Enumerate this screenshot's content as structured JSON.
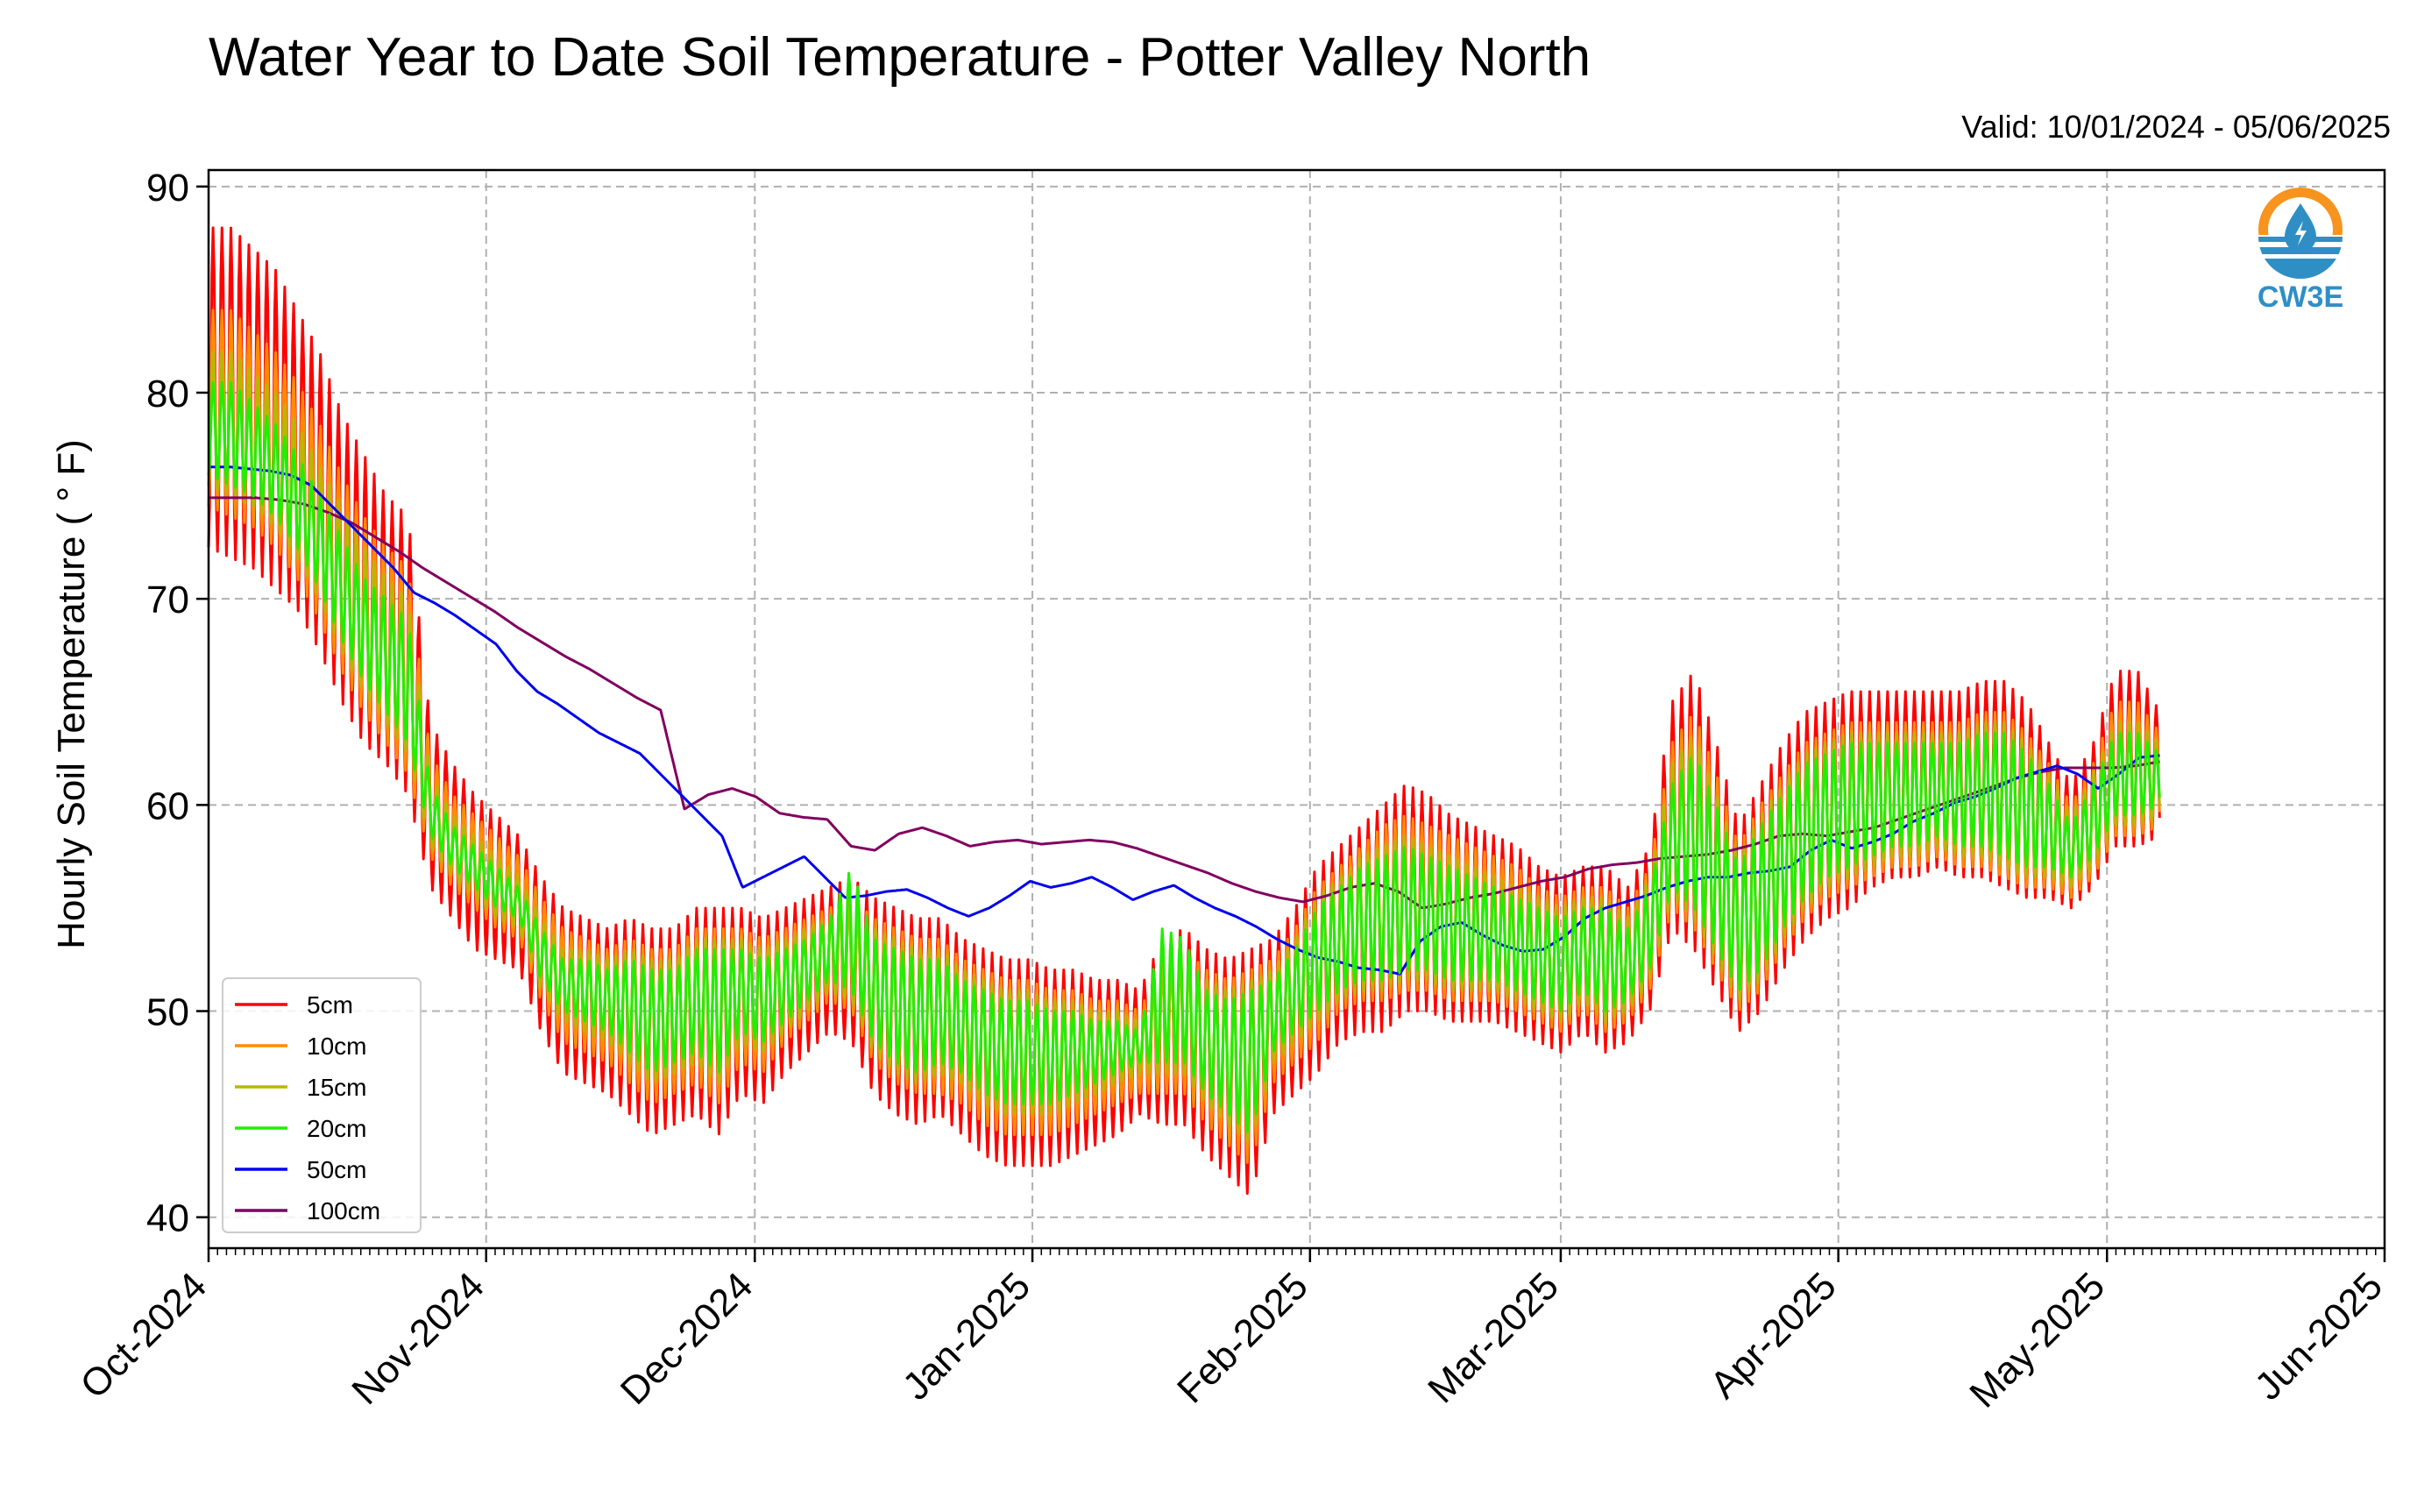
{
  "title": "Water Year to Date Soil Temperature - Potter Valley North",
  "valid_text": "Valid: 10/01/2024 - 05/06/2025",
  "logo": {
    "text": "CW3E",
    "icon": "cw3e-logo-icon",
    "colors": {
      "orange": "#f7941d",
      "blue": "#2f8fc5"
    }
  },
  "chart_data": {
    "type": "line",
    "title": "Water Year to Date Soil Temperature - Potter Valley North",
    "xlabel": "",
    "ylabel": "Hourly Soil Temperature ( ° F)",
    "xlim": [
      "2024-10-01",
      "2025-06-01"
    ],
    "ylim": [
      38.5,
      90.8
    ],
    "y_ticks": [
      40,
      50,
      60,
      70,
      80,
      90
    ],
    "x_ticks": [
      "2024-10-01",
      "2024-11-01",
      "2024-12-01",
      "2025-01-01",
      "2025-02-01",
      "2025-03-01",
      "2025-04-01",
      "2025-05-01",
      "2025-06-01"
    ],
    "x_tick_labels": [
      "Oct-2024",
      "Nov-2024",
      "Dec-2024",
      "Jan-2025",
      "Feb-2025",
      "Mar-2025",
      "Apr-2025",
      "May-2025",
      "Jun-2025"
    ],
    "grid": true,
    "legend_position": "bottom-left",
    "daily_cycle": true,
    "series": [
      {
        "name": "5cm",
        "color": "#ff0000",
        "min_values": [
          72.5,
          72.0,
          71.5,
          70.5,
          69.5,
          67.5,
          65.0,
          63.0,
          62.0,
          60.5,
          56.0,
          54.5,
          53.0,
          52.5,
          52.0,
          49.0,
          47.0,
          46.5,
          46.0,
          45.0,
          44.0,
          44.5,
          45.0,
          44.0,
          46.0,
          45.5,
          47.0,
          48.0,
          49.0,
          48.5,
          46.0,
          45.0,
          44.5,
          45.0,
          44.0,
          43.0,
          42.5,
          42.5,
          42.5,
          43.0,
          43.5,
          44.0,
          45.0,
          44.5,
          44.5,
          43.0,
          42.0,
          41.0,
          45.0,
          46.0,
          47.0,
          48.5,
          49.0,
          49.0,
          50.0,
          50.0,
          49.5,
          49.5,
          49.5,
          49.0,
          48.5,
          48.0,
          49.0,
          48.0,
          48.5,
          50.0,
          54.0,
          53.0,
          51.0,
          49.0,
          50.0,
          52.0,
          53.5,
          54.5,
          55.0,
          56.0,
          56.5,
          56.5,
          57.0,
          56.5,
          56.5,
          56.0,
          55.5,
          55.5,
          55.0,
          56.0,
          58.0,
          58.0,
          58.5
        ],
        "max_values": [
          88.0,
          88.0,
          87.0,
          86.0,
          84.0,
          82.0,
          79.0,
          77.0,
          75.0,
          74.0,
          64.0,
          62.0,
          60.5,
          59.5,
          58.5,
          56.5,
          55.0,
          54.5,
          54.0,
          54.5,
          54.0,
          54.0,
          55.0,
          55.0,
          55.0,
          54.5,
          55.0,
          55.5,
          56.0,
          56.5,
          55.5,
          55.0,
          54.5,
          54.5,
          53.5,
          53.0,
          52.5,
          52.5,
          52.0,
          52.0,
          51.5,
          51.5,
          51.0,
          53.5,
          54.0,
          53.0,
          52.5,
          53.0,
          53.5,
          55.0,
          57.0,
          58.0,
          59.0,
          60.0,
          61.0,
          60.5,
          59.5,
          59.0,
          58.5,
          58.0,
          57.0,
          56.5,
          57.0,
          57.0,
          56.0,
          58.0,
          65.0,
          66.5,
          63.0,
          59.0,
          61.0,
          63.0,
          64.5,
          65.0,
          65.5,
          65.5,
          65.5,
          65.5,
          65.5,
          65.5,
          66.0,
          66.0,
          65.0,
          63.0,
          61.0,
          63.0,
          66.5,
          66.5,
          64.5
        ]
      },
      {
        "name": "10cm",
        "color": "#ff8c00",
        "min_values": [
          74.5,
          74.0,
          73.5,
          72.5,
          71.0,
          69.0,
          66.5,
          64.5,
          63.0,
          61.5,
          57.5,
          56.0,
          55.0,
          54.0,
          53.5,
          50.5,
          48.5,
          48.0,
          47.5,
          46.5,
          45.5,
          46.0,
          46.5,
          45.5,
          47.5,
          47.0,
          48.5,
          49.5,
          50.5,
          50.0,
          47.5,
          46.5,
          46.0,
          46.0,
          45.5,
          44.5,
          44.0,
          44.0,
          44.0,
          44.5,
          45.0,
          45.5,
          46.0,
          46.0,
          46.0,
          44.5,
          43.5,
          42.5,
          46.5,
          47.5,
          48.5,
          50.0,
          50.5,
          50.5,
          51.0,
          51.0,
          50.5,
          50.5,
          50.5,
          50.0,
          49.5,
          49.0,
          50.0,
          49.0,
          49.5,
          51.0,
          55.0,
          54.0,
          52.0,
          50.0,
          51.0,
          53.0,
          54.5,
          55.5,
          56.0,
          56.5,
          57.0,
          57.0,
          57.5,
          57.0,
          57.0,
          56.5,
          56.0,
          56.0,
          55.5,
          56.5,
          58.5,
          58.5,
          59.0
        ],
        "max_values": [
          84.0,
          84.0,
          83.0,
          82.0,
          80.5,
          78.5,
          76.0,
          74.0,
          72.5,
          71.5,
          62.5,
          60.5,
          59.5,
          58.5,
          57.5,
          55.5,
          54.0,
          53.5,
          53.0,
          53.5,
          53.0,
          53.0,
          54.0,
          54.0,
          54.0,
          53.5,
          54.0,
          54.5,
          55.0,
          55.5,
          54.5,
          54.0,
          53.5,
          53.5,
          52.5,
          52.0,
          51.5,
          51.5,
          51.0,
          51.0,
          50.5,
          50.5,
          50.0,
          52.5,
          53.0,
          52.0,
          51.5,
          52.0,
          52.5,
          54.0,
          56.0,
          57.0,
          58.0,
          59.0,
          59.5,
          59.0,
          58.5,
          58.0,
          57.5,
          57.0,
          56.0,
          55.5,
          56.0,
          56.0,
          55.0,
          57.0,
          63.0,
          64.5,
          61.5,
          58.0,
          60.0,
          61.5,
          63.0,
          63.5,
          64.0,
          64.0,
          64.0,
          64.0,
          64.0,
          64.0,
          64.5,
          64.5,
          63.5,
          62.0,
          60.0,
          62.0,
          65.0,
          65.0,
          63.5
        ]
      },
      {
        "name": "15cm",
        "color": "#b8b800",
        "min_values": [
          75.5,
          75.0,
          74.5,
          73.5,
          72.0,
          70.0,
          67.5,
          65.5,
          64.0,
          62.5,
          58.0,
          56.5,
          55.5,
          54.5,
          54.0,
          51.0,
          49.5,
          49.0,
          48.5,
          47.5,
          46.5,
          47.0,
          47.5,
          46.5,
          48.5,
          48.0,
          49.0,
          50.0,
          51.0,
          50.5,
          48.0,
          47.0,
          46.5,
          47.0,
          46.5,
          45.5,
          45.0,
          45.0,
          45.0,
          45.5,
          46.0,
          46.5,
          47.0,
          47.0,
          47.0,
          45.5,
          44.5,
          43.5,
          47.5,
          48.5,
          49.5,
          50.5,
          51.0,
          51.0,
          51.5,
          51.5,
          51.0,
          51.0,
          51.0,
          50.5,
          50.0,
          49.5,
          50.5,
          49.5,
          50.0,
          51.5,
          55.5,
          54.5,
          52.5,
          50.5,
          51.5,
          53.5,
          55.0,
          56.0,
          56.5,
          57.0,
          57.5,
          57.5,
          58.0,
          57.5,
          57.5,
          57.0,
          56.5,
          56.5,
          56.0,
          57.0,
          59.0,
          59.0,
          59.5
        ],
        "max_values": [
          82.0,
          82.0,
          81.0,
          80.0,
          78.5,
          76.5,
          74.5,
          72.5,
          71.0,
          70.0,
          61.5,
          59.5,
          58.5,
          57.5,
          56.5,
          54.5,
          53.0,
          53.0,
          52.5,
          53.0,
          52.5,
          52.5,
          53.5,
          53.5,
          53.5,
          53.0,
          53.5,
          54.0,
          54.5,
          55.0,
          54.0,
          53.5,
          53.0,
          53.0,
          52.0,
          51.5,
          51.0,
          51.0,
          50.5,
          50.5,
          50.0,
          50.0,
          49.5,
          52.0,
          52.5,
          51.5,
          51.0,
          51.5,
          52.0,
          53.5,
          55.5,
          56.5,
          57.5,
          58.0,
          58.5,
          58.0,
          57.5,
          57.0,
          56.5,
          56.0,
          55.5,
          55.0,
          55.5,
          55.5,
          54.5,
          56.5,
          62.0,
          63.5,
          60.5,
          57.5,
          59.5,
          61.0,
          62.5,
          63.0,
          63.5,
          63.5,
          63.5,
          63.5,
          63.5,
          63.5,
          64.0,
          64.0,
          63.0,
          61.5,
          59.5,
          61.5,
          64.0,
          64.0,
          63.0
        ]
      },
      {
        "name": "20cm",
        "color": "#22ee00",
        "min_values": [
          76.0,
          75.5,
          75.0,
          74.0,
          72.5,
          70.5,
          68.0,
          66.0,
          64.5,
          63.0,
          58.5,
          57.0,
          56.0,
          55.0,
          54.5,
          51.5,
          50.0,
          49.5,
          49.0,
          48.0,
          47.0,
          47.5,
          48.0,
          47.0,
          49.0,
          48.5,
          49.5,
          50.5,
          51.5,
          51.0,
          48.5,
          47.5,
          47.0,
          47.5,
          47.0,
          46.0,
          45.5,
          45.5,
          45.5,
          46.0,
          46.5,
          47.0,
          47.5,
          47.5,
          47.5,
          46.0,
          45.0,
          44.0,
          48.0,
          49.0,
          50.0,
          51.0,
          51.5,
          51.5,
          52.0,
          52.0,
          51.5,
          51.5,
          51.5,
          51.0,
          50.5,
          50.0,
          51.0,
          50.0,
          50.5,
          52.0,
          56.0,
          55.0,
          53.0,
          51.0,
          52.0,
          54.0,
          55.5,
          56.5,
          57.0,
          57.5,
          58.0,
          58.0,
          58.5,
          58.0,
          58.0,
          57.5,
          57.0,
          57.0,
          56.5,
          57.5,
          59.5,
          59.5,
          60.0
        ],
        "max_values": [
          80.5,
          80.5,
          79.5,
          78.5,
          77.0,
          75.0,
          73.0,
          71.0,
          70.0,
          69.0,
          61.0,
          59.0,
          58.0,
          57.0,
          56.0,
          54.0,
          52.5,
          52.5,
          52.0,
          52.5,
          52.0,
          52.0,
          53.0,
          53.0,
          53.0,
          52.5,
          53.0,
          53.5,
          54.5,
          57.0,
          53.5,
          53.0,
          52.5,
          52.5,
          51.5,
          51.0,
          50.5,
          50.5,
          50.0,
          50.0,
          49.5,
          49.5,
          49.0,
          54.0,
          53.5,
          51.0,
          50.5,
          51.0,
          51.5,
          53.0,
          55.0,
          56.0,
          57.0,
          57.5,
          58.0,
          57.5,
          57.0,
          56.5,
          56.0,
          55.5,
          55.0,
          54.5,
          55.0,
          55.0,
          54.0,
          56.0,
          61.0,
          62.5,
          60.0,
          57.0,
          59.0,
          60.5,
          62.0,
          62.5,
          63.0,
          63.0,
          63.0,
          63.0,
          63.0,
          63.0,
          63.5,
          63.5,
          62.5,
          61.0,
          59.0,
          61.0,
          63.5,
          63.5,
          62.5
        ]
      },
      {
        "name": "50cm",
        "color": "#0000ee",
        "values": [
          76.4,
          76.4,
          76.3,
          76.2,
          76.0,
          75.5,
          74.5,
          73.5,
          72.5,
          71.5,
          70.3,
          69.8,
          69.2,
          68.5,
          67.8,
          66.5,
          65.5,
          64.9,
          64.2,
          63.5,
          63.0,
          62.5,
          61.5,
          60.5,
          59.5,
          58.5,
          56.0,
          56.5,
          57.0,
          57.5,
          56.5,
          55.5,
          55.6,
          55.8,
          55.9,
          55.5,
          55.0,
          54.6,
          55.0,
          55.6,
          56.3,
          56.0,
          56.2,
          56.5,
          56.0,
          55.4,
          55.8,
          56.1,
          55.5,
          55.0,
          54.6,
          54.1,
          53.5,
          53.0,
          52.6,
          52.4,
          52.1,
          52.0,
          51.8,
          53.4,
          54.1,
          54.3,
          53.7,
          53.2,
          52.9,
          53.0,
          53.6,
          54.5,
          55.0,
          55.3,
          55.6,
          56.0,
          56.3,
          56.5,
          56.5,
          56.7,
          56.8,
          57.0,
          57.8,
          58.3,
          57.9,
          58.2,
          58.6,
          59.2,
          59.6,
          60.1,
          60.4,
          60.8,
          61.3,
          61.6,
          61.9,
          61.5,
          60.8,
          61.5,
          62.3,
          62.4
        ]
      },
      {
        "name": "100cm",
        "color": "#800060",
        "values": [
          74.9,
          74.9,
          74.9,
          74.8,
          74.6,
          74.2,
          73.7,
          73.0,
          72.3,
          71.5,
          70.8,
          70.1,
          69.4,
          68.6,
          67.9,
          67.2,
          66.6,
          65.9,
          65.2,
          64.6,
          59.8,
          60.5,
          60.8,
          60.4,
          59.6,
          59.4,
          59.3,
          58.0,
          57.8,
          58.6,
          58.9,
          58.5,
          58.0,
          58.2,
          58.3,
          58.1,
          58.2,
          58.3,
          58.2,
          57.9,
          57.5,
          57.1,
          56.7,
          56.2,
          55.8,
          55.5,
          55.3,
          55.6,
          56.0,
          56.2,
          55.8,
          55.0,
          55.2,
          55.5,
          55.7,
          56.0,
          56.3,
          56.5,
          56.9,
          57.1,
          57.2,
          57.4,
          57.5,
          57.6,
          57.8,
          58.1,
          58.5,
          58.6,
          58.5,
          58.7,
          58.9,
          59.3,
          59.7,
          60.1,
          60.5,
          60.9,
          61.3,
          61.6,
          61.8,
          61.8,
          61.8,
          61.9,
          62.1
        ]
      }
    ]
  }
}
